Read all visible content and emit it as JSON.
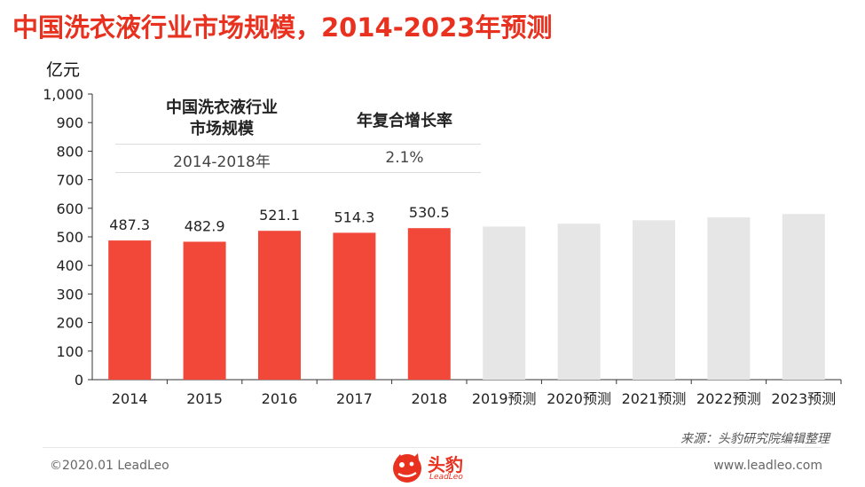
{
  "page": {
    "title": "中国洗衣液行业市场规模，2014-2023年预测",
    "unit": "亿元",
    "source": "来源：头豹研究院编辑整理",
    "copyright": "©2020.01 LeadLeo",
    "website": "www.leadleo.com",
    "logo_text": "头豹",
    "logo_sub": "LeadLeo"
  },
  "cagr_table": {
    "header_left": "中国洗衣液行业\n市场规模",
    "header_right": "年复合增长率",
    "period": "2014-2018年",
    "rate": "2.1%"
  },
  "colors": {
    "actual": "#f2483a",
    "forecast": "#e6e6e6",
    "title": "#e8311f",
    "axis": "#333333"
  },
  "chart_data": {
    "type": "bar",
    "categories": [
      "2014",
      "2015",
      "2016",
      "2017",
      "2018",
      "2019预测",
      "2020预测",
      "2021预测",
      "2022预测",
      "2023预测"
    ],
    "values": [
      487.3,
      482.9,
      521.1,
      514.3,
      530.5,
      536,
      546,
      558,
      568,
      580
    ],
    "labels": [
      "487.3",
      "482.9",
      "521.1",
      "514.3",
      "530.5",
      "",
      "",
      "",
      "",
      ""
    ],
    "forecast": [
      false,
      false,
      false,
      false,
      false,
      true,
      true,
      true,
      true,
      true
    ],
    "ylim": [
      0,
      1000
    ],
    "yticks": [
      0,
      100,
      200,
      300,
      400,
      500,
      600,
      700,
      800,
      900,
      1000
    ],
    "ytick_labels": [
      "0",
      "100",
      "200",
      "300",
      "400",
      "500",
      "600",
      "700",
      "800",
      "900",
      "1,000"
    ],
    "ylabel": "亿元",
    "grid": false,
    "legend": "none"
  }
}
